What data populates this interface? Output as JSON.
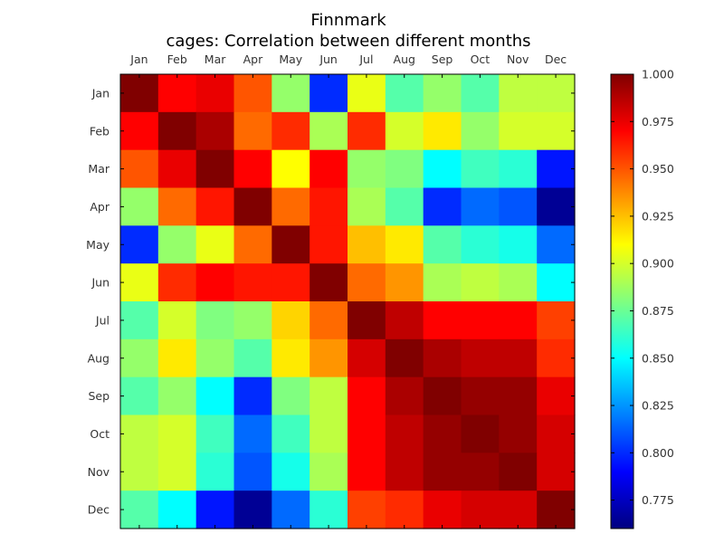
{
  "chart_data": {
    "type": "heatmap",
    "title": "Finnmark",
    "subtitle": "cages: Correlation between different months",
    "x_categories": [
      "Jan",
      "Feb",
      "Mar",
      "Apr",
      "May",
      "Jun",
      "Jul",
      "Aug",
      "Sep",
      "Oct",
      "Nov",
      "Dec"
    ],
    "y_categories": [
      "Jan",
      "Feb",
      "Mar",
      "Apr",
      "May",
      "Jun",
      "Jul",
      "Aug",
      "Sep",
      "Oct",
      "Nov",
      "Dec"
    ],
    "x_tick_position": "top",
    "colormap": "jet",
    "vmin": 0.76,
    "vmax": 1.0,
    "colorbar_ticks": [
      {
        "value": 0.775,
        "label": "0.775"
      },
      {
        "value": 0.8,
        "label": "0.800"
      },
      {
        "value": 0.825,
        "label": "0.825"
      },
      {
        "value": 0.85,
        "label": "0.850"
      },
      {
        "value": 0.875,
        "label": "0.875"
      },
      {
        "value": 0.9,
        "label": "0.900"
      },
      {
        "value": 0.925,
        "label": "0.925"
      },
      {
        "value": 0.95,
        "label": "0.950"
      },
      {
        "value": 0.975,
        "label": "0.975"
      },
      {
        "value": 1.0,
        "label": "1.000"
      }
    ],
    "colorbar_placement": "right",
    "values": [
      [
        1.0,
        0.97,
        0.975,
        0.95,
        0.885,
        0.8,
        0.905,
        0.87,
        0.885,
        0.87,
        0.895,
        0.895
      ],
      [
        0.97,
        1.0,
        0.99,
        0.945,
        0.96,
        0.89,
        0.96,
        0.9,
        0.915,
        0.885,
        0.9,
        0.9
      ],
      [
        0.95,
        0.975,
        1.0,
        0.97,
        0.91,
        0.97,
        0.885,
        0.88,
        0.85,
        0.865,
        0.86,
        0.795
      ],
      [
        0.885,
        0.945,
        0.965,
        1.0,
        0.945,
        0.965,
        0.89,
        0.87,
        0.8,
        0.815,
        0.81,
        0.765
      ],
      [
        0.8,
        0.885,
        0.905,
        0.945,
        1.0,
        0.965,
        0.925,
        0.915,
        0.87,
        0.86,
        0.855,
        0.815
      ],
      [
        0.905,
        0.96,
        0.97,
        0.965,
        0.965,
        1.0,
        0.945,
        0.935,
        0.89,
        0.895,
        0.89,
        0.85
      ],
      [
        0.87,
        0.9,
        0.88,
        0.885,
        0.92,
        0.945,
        1.0,
        0.985,
        0.97,
        0.97,
        0.97,
        0.955
      ],
      [
        0.885,
        0.915,
        0.885,
        0.87,
        0.915,
        0.935,
        0.98,
        1.0,
        0.99,
        0.985,
        0.985,
        0.96
      ],
      [
        0.87,
        0.885,
        0.85,
        0.8,
        0.88,
        0.895,
        0.97,
        0.99,
        1.0,
        0.995,
        0.995,
        0.975
      ],
      [
        0.895,
        0.9,
        0.865,
        0.815,
        0.865,
        0.895,
        0.97,
        0.985,
        0.995,
        1.0,
        0.995,
        0.98
      ],
      [
        0.895,
        0.9,
        0.86,
        0.81,
        0.855,
        0.89,
        0.97,
        0.985,
        0.995,
        0.995,
        1.0,
        0.98
      ],
      [
        0.87,
        0.85,
        0.795,
        0.765,
        0.815,
        0.86,
        0.955,
        0.96,
        0.975,
        0.98,
        0.98,
        1.0
      ]
    ]
  }
}
